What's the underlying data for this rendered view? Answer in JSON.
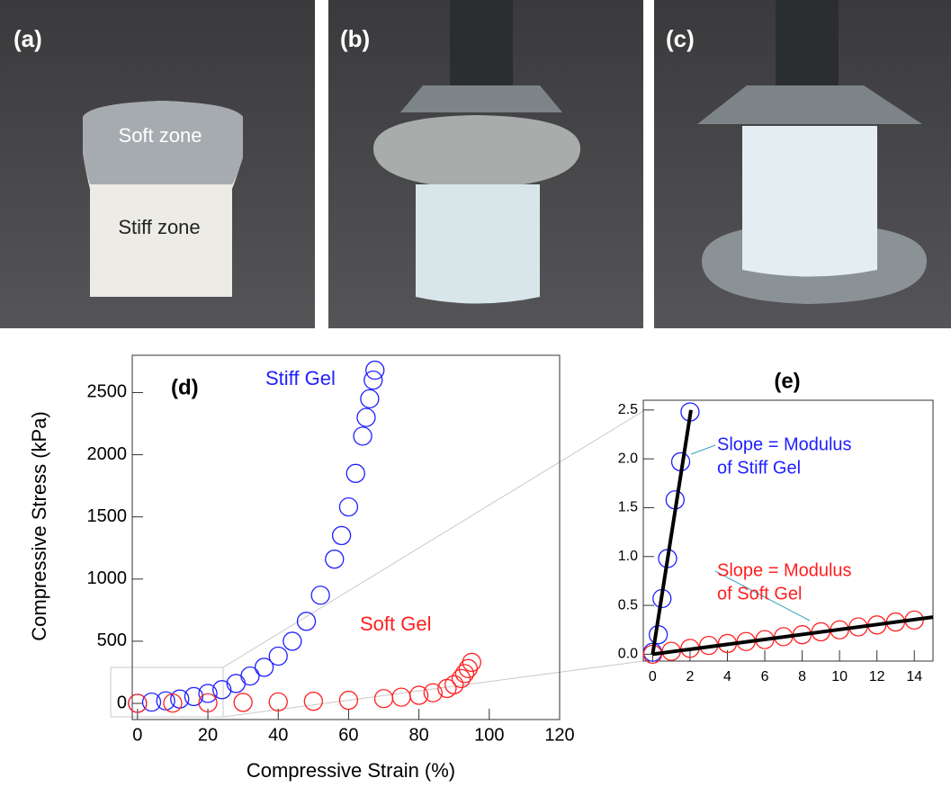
{
  "photos": [
    {
      "label": "(a)",
      "annotations": [
        "Soft zone",
        "Stiff zone"
      ]
    },
    {
      "label": "(b)"
    },
    {
      "label": "(c)"
    }
  ],
  "chart_data": [
    {
      "type": "scatter",
      "title": "(d)",
      "x_label": "Compressive Strain (%)",
      "y_label": "Compressive Stress (kPa)",
      "xlim": [
        -1.5,
        120
      ],
      "ylim": [
        -130,
        2800
      ],
      "xticks": [
        0,
        20,
        40,
        60,
        80,
        100,
        120
      ],
      "yticks": [
        0,
        500,
        1000,
        1500,
        2000,
        2500
      ],
      "series": [
        {
          "name": "Stiff Gel",
          "color": "#1f1fff",
          "x": [
            0,
            4,
            8,
            12,
            16,
            20,
            24,
            28,
            32,
            36,
            40,
            44,
            48,
            52,
            56,
            58,
            60,
            62,
            64,
            65,
            66,
            67,
            67.5
          ],
          "y": [
            0,
            10,
            20,
            35,
            55,
            80,
            110,
            160,
            220,
            290,
            380,
            500,
            660,
            870,
            1160,
            1350,
            1580,
            1850,
            2150,
            2300,
            2450,
            2600,
            2680
          ]
        },
        {
          "name": "Soft Gel",
          "color": "#ff1f1f",
          "x": [
            0,
            10,
            20,
            30,
            40,
            50,
            60,
            70,
            75,
            80,
            84,
            88,
            90,
            92,
            93,
            94,
            95
          ],
          "y": [
            0,
            2,
            5,
            8,
            12,
            17,
            25,
            38,
            50,
            65,
            85,
            120,
            150,
            200,
            240,
            280,
            330
          ]
        }
      ]
    },
    {
      "type": "scatter",
      "title": "(e)",
      "xlim": [
        -0.5,
        15
      ],
      "ylim": [
        -0.07,
        2.6
      ],
      "xticks": [
        0,
        2,
        4,
        6,
        8,
        10,
        12,
        14
      ],
      "yticks": [
        {
          "value": 0,
          "label": "0.0"
        },
        0.5,
        {
          "value": 1,
          "label": "1.0"
        },
        1.5,
        {
          "value": 2,
          "label": "2.0"
        },
        2.5
      ],
      "series": [
        {
          "name": "Stiff Gel",
          "color": "#1f1fff",
          "annotation": [
            "Slope = Modulus",
            "of Stiff Gel"
          ],
          "x": [
            0,
            0.3,
            0.5,
            0.8,
            1.2,
            1.5,
            2.0
          ],
          "y": [
            0.02,
            0.2,
            0.57,
            0.98,
            1.58,
            1.97,
            2.48
          ]
        },
        {
          "name": "Soft Gel",
          "color": "#ff1f1f",
          "annotation": [
            "Slope = Modulus",
            "of Soft Gel"
          ],
          "x": [
            0,
            1,
            2,
            3,
            4,
            5,
            6,
            7,
            8,
            9,
            10,
            11,
            12,
            13,
            14
          ],
          "y": [
            0,
            0.03,
            0.06,
            0.09,
            0.11,
            0.13,
            0.15,
            0.18,
            0.2,
            0.23,
            0.25,
            0.28,
            0.3,
            0.33,
            0.35
          ]
        }
      ],
      "fit_lines": [
        {
          "x": [
            0,
            2.05
          ],
          "y": [
            0,
            2.5
          ]
        },
        {
          "x": [
            0,
            15
          ],
          "y": [
            0,
            0.38
          ]
        }
      ]
    }
  ]
}
